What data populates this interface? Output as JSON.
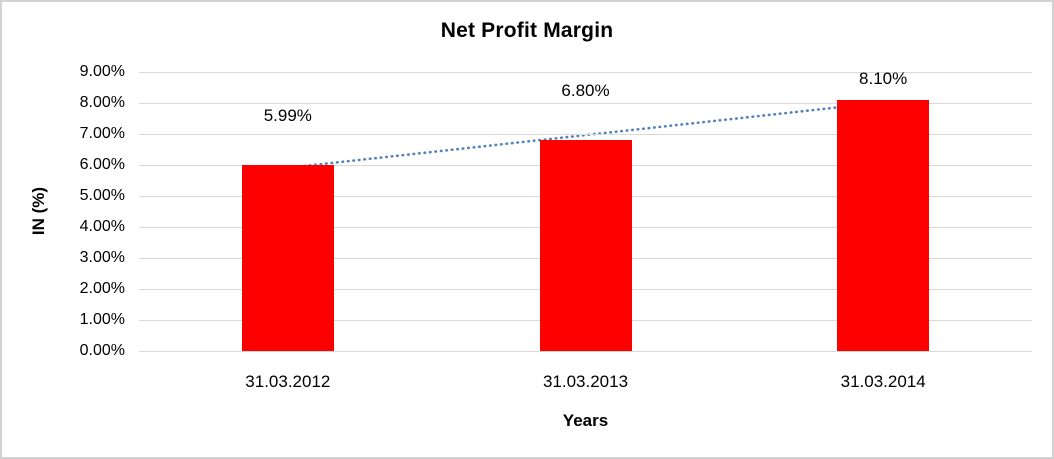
{
  "window": {
    "background_color": "#ffffff",
    "frame_border_color": "#d2d2d2"
  },
  "chart_data": {
    "type": "bar",
    "title": "Net Profit Margin",
    "xlabel": "Years",
    "ylabel": "IN (%)",
    "categories": [
      "31.03.2012",
      "31.03.2013",
      "31.03.2014"
    ],
    "series": [
      {
        "name": "Net Profit Margin",
        "values": [
          5.99,
          6.8,
          8.1
        ]
      }
    ],
    "value_labels": [
      "5.99%",
      "6.80%",
      "8.10%"
    ],
    "ylim": [
      0,
      9
    ],
    "ytick_labels": [
      "0.00%",
      "1.00%",
      "2.00%",
      "3.00%",
      "4.00%",
      "5.00%",
      "6.00%",
      "7.00%",
      "8.00%",
      "9.00%"
    ],
    "grid": true,
    "legend": false,
    "bar_color": "#ff0000",
    "gridline_color": "#d9d9d9",
    "text_color": "#000000",
    "trendline": {
      "type": "linear",
      "style": "dotted",
      "color": "#4f81bd",
      "start_value": 5.91,
      "end_value": 8.02
    }
  }
}
